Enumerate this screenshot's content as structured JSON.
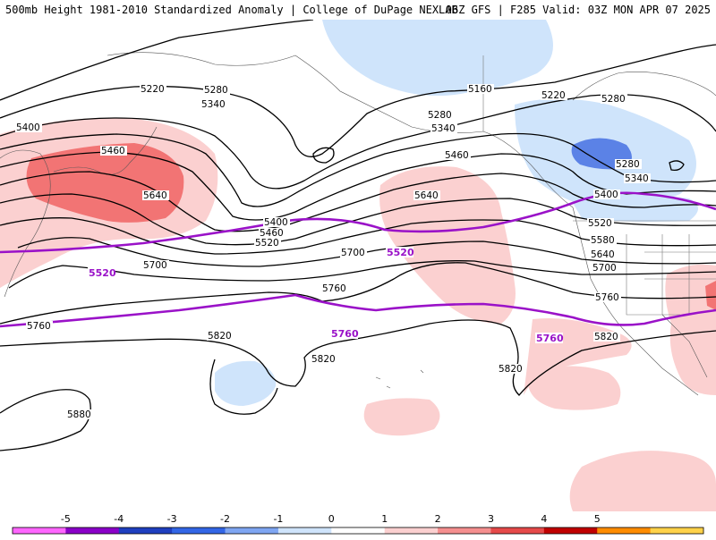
{
  "header": {
    "left_title": "500mb Height 1981-2010 Standardized Anomaly | College of DuPage NEXLAB",
    "right_title": "06Z GFS | F285 Valid: 03Z MON APR 07 2025"
  },
  "map": {
    "contour_labels": [
      "5220",
      "5280",
      "5340",
      "5400",
      "5460",
      "5520",
      "5580",
      "5640",
      "5700",
      "5760",
      "5820",
      "5880",
      "5160"
    ],
    "highlighted_contours": [
      "5520",
      "5760"
    ],
    "labels_on_map": [
      "5220",
      "5280",
      "5340",
      "5400",
      "5460",
      "5640",
      "5520",
      "5580",
      "5700",
      "5760",
      "5820",
      "5880",
      "5160",
      "5220",
      "5280",
      "5340",
      "5460",
      "5640",
      "5700",
      "5400",
      "5520",
      "5580",
      "5640",
      "5700",
      "5760",
      "5820",
      "5280",
      "5340",
      "5400",
      "5220",
      "5280",
      "5820"
    ]
  },
  "colorbar": {
    "ticks": [
      "-5",
      "-4",
      "-3",
      "-2",
      "-1",
      "0",
      "1",
      "2",
      "3",
      "4",
      "5"
    ],
    "colors": [
      "#ff66ff",
      "#8a00c8",
      "#1f3fbf",
      "#3366e6",
      "#7fa6f2",
      "#cfe4fb",
      "#ffffff",
      "#fbd0d0",
      "#f58f8f",
      "#e64a4a",
      "#c00000",
      "#ff8c00",
      "#ffd24a"
    ]
  }
}
